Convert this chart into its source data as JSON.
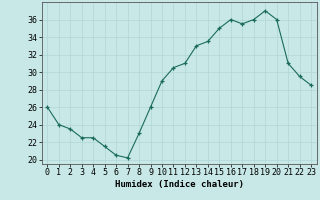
{
  "x": [
    0,
    1,
    2,
    3,
    4,
    5,
    6,
    7,
    8,
    9,
    10,
    11,
    12,
    13,
    14,
    15,
    16,
    17,
    18,
    19,
    20,
    21,
    22,
    23
  ],
  "y": [
    26,
    24,
    23.5,
    22.5,
    22.5,
    21.5,
    20.5,
    20.2,
    23,
    26,
    29,
    30.5,
    31,
    33,
    33.5,
    35,
    36,
    35.5,
    36,
    37,
    36,
    31,
    29.5,
    28.5
  ],
  "line_color": "#1a6b5a",
  "marker_color": "#1a6b5a",
  "bg_color": "#c8e8e8",
  "grid_color": "#b0d4d4",
  "xlabel": "Humidex (Indice chaleur)",
  "ylim": [
    19.5,
    38
  ],
  "xlim": [
    -0.5,
    23.5
  ],
  "yticks": [
    20,
    22,
    24,
    26,
    28,
    30,
    32,
    34,
    36
  ],
  "xticks": [
    0,
    1,
    2,
    3,
    4,
    5,
    6,
    7,
    8,
    9,
    10,
    11,
    12,
    13,
    14,
    15,
    16,
    17,
    18,
    19,
    20,
    21,
    22,
    23
  ],
  "xlabel_fontsize": 6.5,
  "tick_fontsize": 6
}
